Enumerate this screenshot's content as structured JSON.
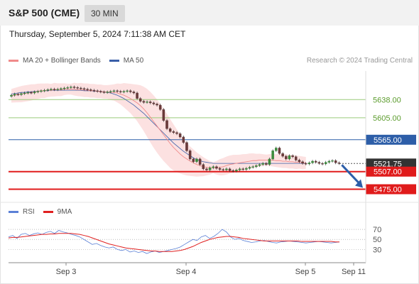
{
  "header": {
    "title": "S&P 500 (CME)",
    "timeframe": "30 MIN"
  },
  "datetime": "Thursday, September 5, 2024 7:11:38 AM CET",
  "legend": {
    "items": [
      {
        "label": "MA 20 + Bollinger Bands",
        "color": "#f08a8a"
      },
      {
        "label": "MA 50",
        "color": "#3a5fa8"
      }
    ],
    "credit": "Research © 2024 Trading Central"
  },
  "rsi_legend": {
    "items": [
      {
        "label": "RSI",
        "color": "#5b80d6"
      },
      {
        "label": "9MA",
        "color": "#e02020"
      }
    ]
  },
  "chart_data": [
    {
      "type": "candlestick",
      "panel": "price",
      "ylim": [
        5455,
        5690
      ],
      "x_labels": [
        "Sep 3",
        "Sep 4",
        "Sep 5",
        "Sep 11"
      ],
      "levels": [
        {
          "label": "5638.00",
          "value": 5638,
          "style": "green"
        },
        {
          "label": "5605.00",
          "value": 5605,
          "style": "green"
        },
        {
          "label": "5565.00",
          "value": 5565,
          "style": "blue"
        },
        {
          "label": "5521.75",
          "value": 5521.75,
          "style": "last"
        },
        {
          "label": "5507.00",
          "value": 5507,
          "style": "red"
        },
        {
          "label": "5475.00",
          "value": 5475,
          "style": "red"
        }
      ],
      "close": [
        5646,
        5648,
        5647,
        5649,
        5650,
        5651,
        5650,
        5652,
        5653,
        5654,
        5655,
        5656,
        5657,
        5656,
        5657,
        5658,
        5659,
        5660,
        5661,
        5660,
        5659,
        5658,
        5657,
        5656,
        5655,
        5654,
        5653,
        5652,
        5651,
        5652,
        5653,
        5654,
        5653,
        5652,
        5653,
        5654,
        5652,
        5650,
        5640,
        5635,
        5633,
        5634,
        5632,
        5630,
        5628,
        5620,
        5600,
        5585,
        5580,
        5578,
        5576,
        5570,
        5560,
        5545,
        5530,
        5525,
        5530,
        5520,
        5512,
        5510,
        5514,
        5516,
        5513,
        5511,
        5510,
        5512,
        5509,
        5508,
        5510,
        5512,
        5511,
        5513,
        5515,
        5516,
        5518,
        5520,
        5522,
        5520,
        5530,
        5545,
        5550,
        5540,
        5535,
        5530,
        5536,
        5534,
        5528,
        5525,
        5522,
        5521,
        5523,
        5526,
        5524,
        5522,
        5521,
        5524,
        5526,
        5527,
        5523,
        5521.75
      ],
      "ma20": [
        5645,
        5646,
        5647,
        5648,
        5649,
        5650,
        5651,
        5652,
        5653,
        5654,
        5654,
        5655,
        5655,
        5656,
        5656,
        5656,
        5657,
        5657,
        5657,
        5657,
        5656,
        5656,
        5655,
        5655,
        5654,
        5654,
        5653,
        5653,
        5652,
        5652,
        5651,
        5651,
        5650,
        5648,
        5646,
        5643,
        5640,
        5636,
        5632,
        5627,
        5621,
        5614,
        5606,
        5598,
        5590,
        5582,
        5574,
        5566,
        5558,
        5551,
        5545,
        5539,
        5534,
        5530,
        5526,
        5523,
        5520,
        5518,
        5516,
        5515,
        5514,
        5514,
        5514,
        5515,
        5516,
        5518,
        5520,
        5521,
        5522,
        5523,
        5524,
        5525,
        5526,
        5527,
        5527,
        5528,
        5528,
        5528,
        5528,
        5528,
        5527,
        5527,
        5526,
        5526,
        5525,
        5525,
        5524,
        5524,
        5523,
        5523
      ],
      "ma50": [
        5648,
        5649,
        5650,
        5651,
        5651,
        5652,
        5652,
        5653,
        5653,
        5654,
        5654,
        5654,
        5655,
        5655,
        5655,
        5655,
        5655,
        5655,
        5655,
        5655,
        5655,
        5655,
        5654,
        5654,
        5654,
        5653,
        5653,
        5653,
        5652,
        5651,
        5650,
        5648,
        5646,
        5643,
        5640,
        5636,
        5632,
        5628,
        5623,
        5618,
        5613,
        5607,
        5601,
        5595,
        5589,
        5583,
        5577,
        5571,
        5565,
        5559,
        5554,
        5549,
        5544,
        5540,
        5536,
        5532,
        5529,
        5527,
        5525,
        5524,
        5523,
        5522,
        5522,
        5522,
        5522,
        5522,
        5522,
        5522,
        5522,
        5522,
        5522,
        5522,
        5522,
        5522,
        5522,
        5522,
        5522,
        5522,
        5522,
        5522,
        5522,
        5522,
        5522,
        5522,
        5522,
        5522,
        5522,
        5522,
        5522,
        5522
      ],
      "forecast_arrow": {
        "from": 5521.75,
        "to": 5475
      }
    },
    {
      "type": "line",
      "panel": "rsi",
      "ylim": [
        15,
        80
      ],
      "y_ticks": [
        "70",
        "50",
        "30"
      ],
      "series": [
        {
          "name": "RSI",
          "values": [
            55,
            58,
            52,
            60,
            62,
            58,
            61,
            63,
            60,
            64,
            66,
            62,
            68,
            65,
            63,
            60,
            58,
            55,
            50,
            45,
            40,
            42,
            38,
            35,
            33,
            35,
            30,
            28,
            30,
            25,
            27,
            24,
            26,
            22,
            25,
            27,
            24,
            26,
            28,
            30,
            32,
            35,
            40,
            45,
            50,
            48,
            55,
            58,
            52,
            56,
            62,
            70,
            65,
            55,
            50,
            52,
            48,
            46,
            44,
            45,
            47,
            48,
            46,
            44,
            43,
            45,
            46,
            47,
            46,
            45,
            44,
            43,
            44,
            45,
            46,
            45,
            44,
            43,
            44,
            45
          ]
        },
        {
          "name": "9MA",
          "values": [
            53,
            54,
            54,
            55,
            56,
            57,
            58,
            59,
            60,
            60,
            61,
            61,
            62,
            62,
            62,
            62,
            61,
            60,
            58,
            56,
            53,
            50,
            47,
            44,
            41,
            39,
            37,
            35,
            33,
            32,
            31,
            30,
            29,
            28,
            27,
            27,
            26,
            26,
            26,
            26,
            27,
            28,
            30,
            33,
            36,
            40,
            44,
            47,
            50,
            52,
            54,
            55,
            56,
            56,
            55,
            54,
            52,
            51,
            50,
            49,
            48,
            47,
            47,
            47,
            47,
            47,
            47,
            47,
            47,
            47,
            46,
            46,
            46,
            46,
            46,
            46,
            46,
            46,
            45,
            45
          ]
        }
      ]
    }
  ]
}
